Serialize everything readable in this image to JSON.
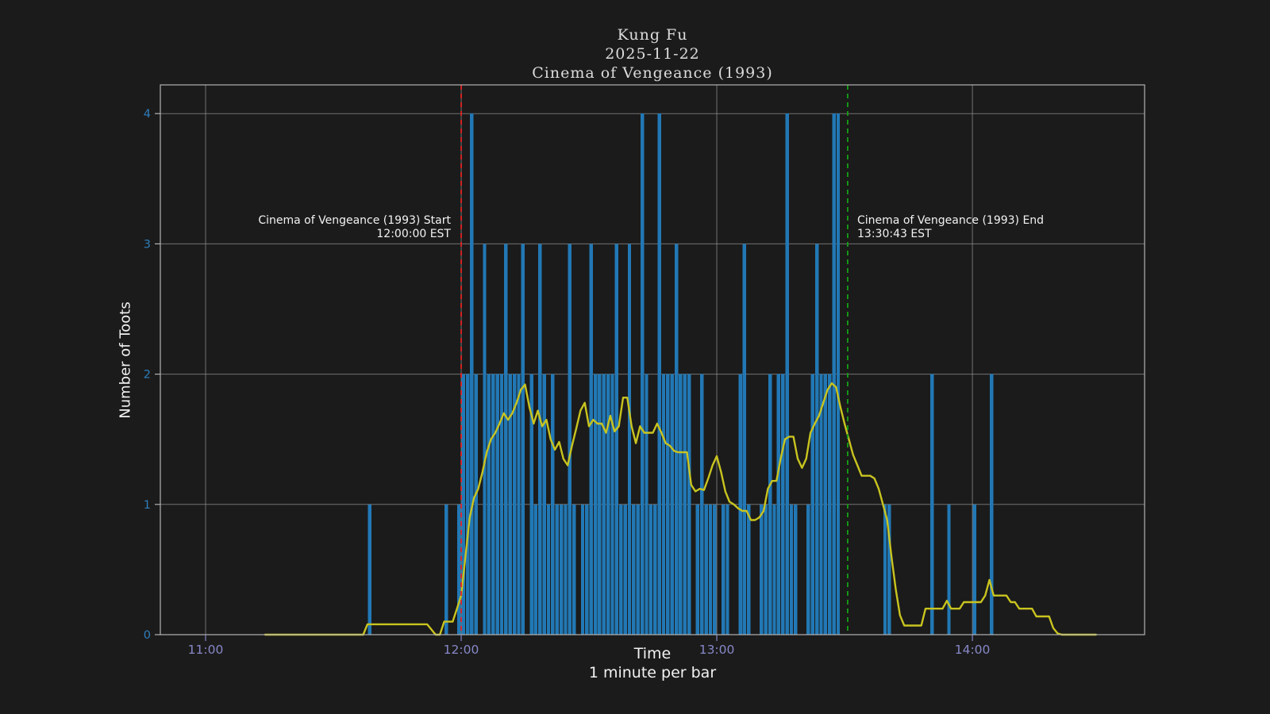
{
  "title": {
    "line1": "Kung Fu",
    "line2": "2025-11-22",
    "line3": "Cinema of Vengeance (1993)"
  },
  "axes": {
    "xlabel": "Time",
    "xlabel_sub": "1 minute per bar",
    "ylabel": "Number of Toots",
    "x_ticks": [
      "11:00",
      "12:00",
      "13:00",
      "14:00"
    ],
    "y_ticks": [
      0,
      1,
      2,
      3,
      4
    ]
  },
  "annotations": {
    "start": {
      "line1": "Cinema of Vengeance (1993) Start",
      "line2": "12:00:00 EST"
    },
    "end": {
      "line1": "Cinema of Vengeance (1993) End",
      "line2": "13:30:43 EST"
    }
  },
  "colors": {
    "background": "#1b1b1b",
    "bar": "#2278b5",
    "line": "#c9c41f",
    "grid": "#8f8f8f",
    "spine": "#b3b3b3",
    "vline_start": "#e42222",
    "vline_end": "#14a014",
    "x_tick": "#8787c8",
    "y_tick": "#2e7ebc",
    "text": "#f2f2f2",
    "title": "#dcdcdc"
  },
  "chart_data": {
    "type": "bar",
    "title": "Kung Fu / 2025-11-22 / Cinema of Vengeance (1993)",
    "xlabel": "Time",
    "xlabel_sub": "1 minute per bar",
    "ylabel": "Number of Toots",
    "grid": true,
    "legend_position": "none",
    "x_range": [
      "10:49",
      "14:40"
    ],
    "ylim": [
      0,
      4.21
    ],
    "bar_unit_minutes": 1,
    "bars": [
      {
        "time": "11:38",
        "count": 1
      },
      {
        "time": "11:56",
        "count": 1
      },
      {
        "time": "11:59",
        "count": 1
      },
      {
        "time": "12:00",
        "count": 2
      },
      {
        "time": "12:01",
        "count": 2
      },
      {
        "time": "12:02",
        "count": 4
      },
      {
        "time": "12:03",
        "count": 2
      },
      {
        "time": "12:05",
        "count": 3
      },
      {
        "time": "12:06",
        "count": 2
      },
      {
        "time": "12:07",
        "count": 2
      },
      {
        "time": "12:08",
        "count": 2
      },
      {
        "time": "12:09",
        "count": 2
      },
      {
        "time": "12:10",
        "count": 3
      },
      {
        "time": "12:11",
        "count": 2
      },
      {
        "time": "12:12",
        "count": 2
      },
      {
        "time": "12:13",
        "count": 2
      },
      {
        "time": "12:14",
        "count": 3
      },
      {
        "time": "12:16",
        "count": 2
      },
      {
        "time": "12:17",
        "count": 1
      },
      {
        "time": "12:18",
        "count": 3
      },
      {
        "time": "12:19",
        "count": 2
      },
      {
        "time": "12:20",
        "count": 1
      },
      {
        "time": "12:21",
        "count": 2
      },
      {
        "time": "12:22",
        "count": 1
      },
      {
        "time": "12:23",
        "count": 1
      },
      {
        "time": "12:24",
        "count": 1
      },
      {
        "time": "12:25",
        "count": 3
      },
      {
        "time": "12:26",
        "count": 1
      },
      {
        "time": "12:28",
        "count": 1
      },
      {
        "time": "12:29",
        "count": 1
      },
      {
        "time": "12:30",
        "count": 3
      },
      {
        "time": "12:31",
        "count": 2
      },
      {
        "time": "12:32",
        "count": 2
      },
      {
        "time": "12:33",
        "count": 2
      },
      {
        "time": "12:34",
        "count": 2
      },
      {
        "time": "12:35",
        "count": 2
      },
      {
        "time": "12:36",
        "count": 3
      },
      {
        "time": "12:37",
        "count": 1
      },
      {
        "time": "12:38",
        "count": 1
      },
      {
        "time": "12:39",
        "count": 3
      },
      {
        "time": "12:40",
        "count": 1
      },
      {
        "time": "12:41",
        "count": 1
      },
      {
        "time": "12:42",
        "count": 4
      },
      {
        "time": "12:43",
        "count": 2
      },
      {
        "time": "12:44",
        "count": 1
      },
      {
        "time": "12:45",
        "count": 1
      },
      {
        "time": "12:46",
        "count": 4
      },
      {
        "time": "12:47",
        "count": 2
      },
      {
        "time": "12:48",
        "count": 2
      },
      {
        "time": "12:49",
        "count": 2
      },
      {
        "time": "12:50",
        "count": 3
      },
      {
        "time": "12:51",
        "count": 2
      },
      {
        "time": "12:52",
        "count": 2
      },
      {
        "time": "12:53",
        "count": 2
      },
      {
        "time": "12:55",
        "count": 1
      },
      {
        "time": "12:56",
        "count": 2
      },
      {
        "time": "12:57",
        "count": 1
      },
      {
        "time": "12:58",
        "count": 1
      },
      {
        "time": "12:59",
        "count": 1
      },
      {
        "time": "13:01",
        "count": 1
      },
      {
        "time": "13:02",
        "count": 1
      },
      {
        "time": "13:05",
        "count": 2
      },
      {
        "time": "13:06",
        "count": 3
      },
      {
        "time": "13:07",
        "count": 1
      },
      {
        "time": "13:10",
        "count": 1
      },
      {
        "time": "13:11",
        "count": 1
      },
      {
        "time": "13:12",
        "count": 2
      },
      {
        "time": "13:13",
        "count": 1
      },
      {
        "time": "13:14",
        "count": 2
      },
      {
        "time": "13:15",
        "count": 2
      },
      {
        "time": "13:16",
        "count": 4
      },
      {
        "time": "13:17",
        "count": 1
      },
      {
        "time": "13:18",
        "count": 1
      },
      {
        "time": "13:21",
        "count": 1
      },
      {
        "time": "13:22",
        "count": 2
      },
      {
        "time": "13:23",
        "count": 3
      },
      {
        "time": "13:24",
        "count": 2
      },
      {
        "time": "13:25",
        "count": 2
      },
      {
        "time": "13:26",
        "count": 2
      },
      {
        "time": "13:27",
        "count": 4
      },
      {
        "time": "13:28",
        "count": 4
      },
      {
        "time": "13:39",
        "count": 1
      },
      {
        "time": "13:40",
        "count": 1
      },
      {
        "time": "13:50",
        "count": 2
      },
      {
        "time": "13:54",
        "count": 1
      },
      {
        "time": "14:00",
        "count": 1
      },
      {
        "time": "14:04",
        "count": 2
      }
    ],
    "line_series": {
      "name": "rolling-average-toots",
      "points": [
        [
          "11:14",
          0
        ],
        [
          "11:37",
          0
        ],
        [
          "11:38",
          0.08
        ],
        [
          "11:52",
          0.08
        ],
        [
          "11:54",
          0
        ],
        [
          "11:55",
          0
        ],
        [
          "11:56",
          0.1
        ],
        [
          "11:58",
          0.1
        ],
        [
          "11:59",
          0.2
        ],
        [
          "12:00",
          0.3
        ],
        [
          "12:01",
          0.6
        ],
        [
          "12:02",
          0.9
        ],
        [
          "12:03",
          1.05
        ],
        [
          "12:04",
          1.12
        ],
        [
          "12:05",
          1.25
        ],
        [
          "12:06",
          1.4
        ],
        [
          "12:07",
          1.5
        ],
        [
          "12:08",
          1.55
        ],
        [
          "12:09",
          1.62
        ],
        [
          "12:10",
          1.7
        ],
        [
          "12:11",
          1.65
        ],
        [
          "12:12",
          1.7
        ],
        [
          "12:13",
          1.78
        ],
        [
          "12:14",
          1.88
        ],
        [
          "12:15",
          1.92
        ],
        [
          "12:16",
          1.75
        ],
        [
          "12:17",
          1.62
        ],
        [
          "12:18",
          1.72
        ],
        [
          "12:19",
          1.6
        ],
        [
          "12:20",
          1.65
        ],
        [
          "12:21",
          1.5
        ],
        [
          "12:22",
          1.42
        ],
        [
          "12:23",
          1.48
        ],
        [
          "12:24",
          1.35
        ],
        [
          "12:25",
          1.3
        ],
        [
          "12:26",
          1.45
        ],
        [
          "12:27",
          1.58
        ],
        [
          "12:28",
          1.72
        ],
        [
          "12:29",
          1.78
        ],
        [
          "12:30",
          1.6
        ],
        [
          "12:31",
          1.65
        ],
        [
          "12:32",
          1.62
        ],
        [
          "12:33",
          1.62
        ],
        [
          "12:34",
          1.55
        ],
        [
          "12:35",
          1.68
        ],
        [
          "12:36",
          1.56
        ],
        [
          "12:37",
          1.6
        ],
        [
          "12:38",
          1.82
        ],
        [
          "12:39",
          1.82
        ],
        [
          "12:40",
          1.6
        ],
        [
          "12:41",
          1.47
        ],
        [
          "12:42",
          1.6
        ],
        [
          "12:43",
          1.55
        ],
        [
          "12:44",
          1.55
        ],
        [
          "12:45",
          1.55
        ],
        [
          "12:46",
          1.62
        ],
        [
          "12:47",
          1.55
        ],
        [
          "12:48",
          1.47
        ],
        [
          "12:49",
          1.45
        ],
        [
          "12:50",
          1.41
        ],
        [
          "12:51",
          1.4
        ],
        [
          "12:52",
          1.4
        ],
        [
          "12:53",
          1.4
        ],
        [
          "12:54",
          1.15
        ],
        [
          "12:55",
          1.1
        ],
        [
          "12:56",
          1.12
        ],
        [
          "12:57",
          1.11
        ],
        [
          "12:58",
          1.2
        ],
        [
          "12:59",
          1.3
        ],
        [
          "13:00",
          1.37
        ],
        [
          "13:01",
          1.25
        ],
        [
          "13:02",
          1.1
        ],
        [
          "13:03",
          1.02
        ],
        [
          "13:04",
          1.0
        ],
        [
          "13:05",
          0.97
        ],
        [
          "13:06",
          0.95
        ],
        [
          "13:07",
          0.95
        ],
        [
          "13:08",
          0.88
        ],
        [
          "13:09",
          0.88
        ],
        [
          "13:10",
          0.9
        ],
        [
          "13:11",
          0.95
        ],
        [
          "13:12",
          1.12
        ],
        [
          "13:13",
          1.18
        ],
        [
          "13:14",
          1.18
        ],
        [
          "13:15",
          1.35
        ],
        [
          "13:16",
          1.5
        ],
        [
          "13:17",
          1.52
        ],
        [
          "13:18",
          1.52
        ],
        [
          "13:19",
          1.35
        ],
        [
          "13:20",
          1.28
        ],
        [
          "13:21",
          1.35
        ],
        [
          "13:22",
          1.55
        ],
        [
          "13:23",
          1.62
        ],
        [
          "13:24",
          1.68
        ],
        [
          "13:25",
          1.78
        ],
        [
          "13:26",
          1.88
        ],
        [
          "13:27",
          1.93
        ],
        [
          "13:28",
          1.9
        ],
        [
          "13:29",
          1.75
        ],
        [
          "13:30",
          1.62
        ],
        [
          "13:31",
          1.5
        ],
        [
          "13:32",
          1.38
        ],
        [
          "13:33",
          1.3
        ],
        [
          "13:34",
          1.22
        ],
        [
          "13:36",
          1.22
        ],
        [
          "13:37",
          1.2
        ],
        [
          "13:38",
          1.12
        ],
        [
          "13:39",
          1.0
        ],
        [
          "13:40",
          0.88
        ],
        [
          "13:41",
          0.6
        ],
        [
          "13:42",
          0.35
        ],
        [
          "13:43",
          0.15
        ],
        [
          "13:44",
          0.07
        ],
        [
          "13:48",
          0.07
        ],
        [
          "13:49",
          0.2
        ],
        [
          "13:53",
          0.2
        ],
        [
          "13:54",
          0.26
        ],
        [
          "13:55",
          0.2
        ],
        [
          "13:57",
          0.2
        ],
        [
          "13:58",
          0.25
        ],
        [
          "14:02",
          0.25
        ],
        [
          "14:03",
          0.3
        ],
        [
          "14:04",
          0.42
        ],
        [
          "14:05",
          0.3
        ],
        [
          "14:08",
          0.3
        ],
        [
          "14:09",
          0.25
        ],
        [
          "14:10",
          0.25
        ],
        [
          "14:11",
          0.2
        ],
        [
          "14:14",
          0.2
        ],
        [
          "14:15",
          0.14
        ],
        [
          "14:18",
          0.14
        ],
        [
          "14:19",
          0.05
        ],
        [
          "14:20",
          0.01
        ],
        [
          "14:21",
          0
        ],
        [
          "14:29",
          0
        ]
      ]
    },
    "vlines": [
      {
        "time": "12:00:00",
        "color": "#e42222",
        "style": "dashed",
        "label": "Cinema of Vengeance (1993) Start 12:00:00 EST"
      },
      {
        "time": "13:30:43",
        "color": "#14a014",
        "style": "dashed",
        "label": "Cinema of Vengeance (1993) End 13:30:43 EST"
      }
    ]
  }
}
